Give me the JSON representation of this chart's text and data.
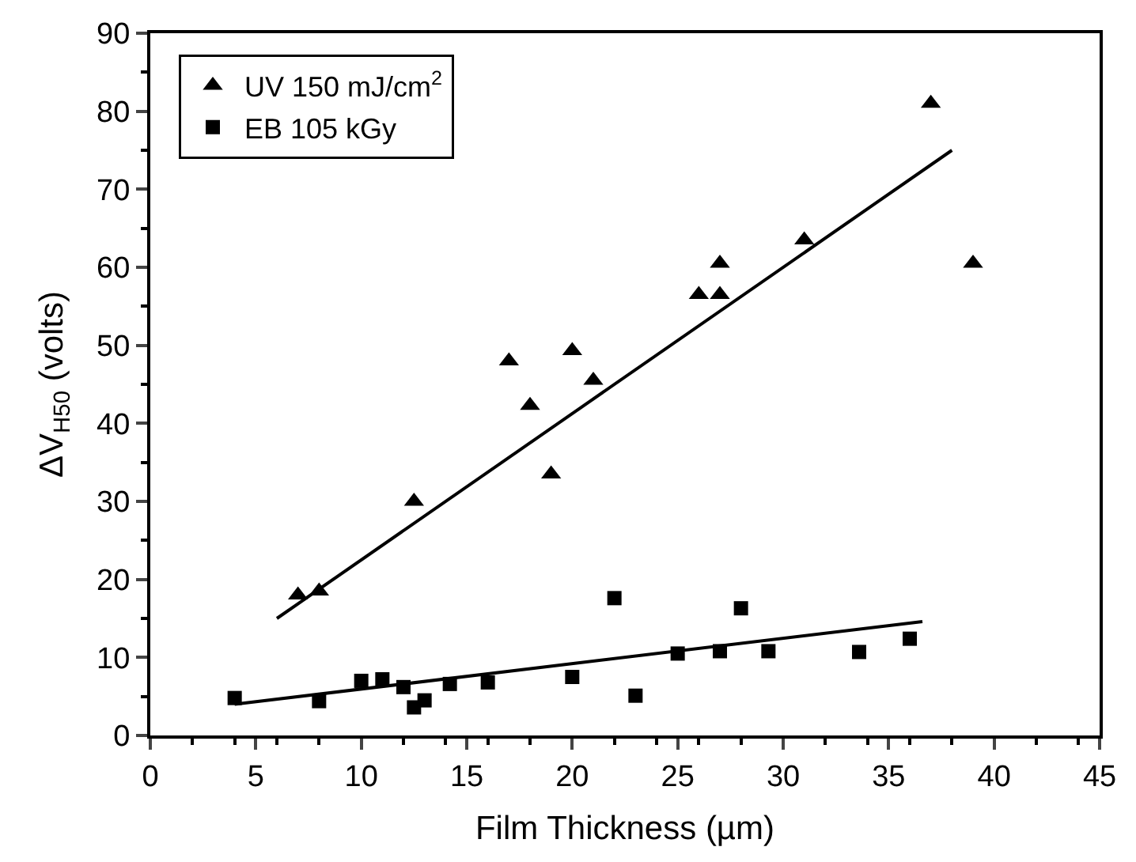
{
  "chart_data": {
    "type": "scatter",
    "xlabel": "Film Thickness (µm)",
    "ylabel": "ΔV$_{H50}$ (volts)",
    "xlim": [
      0,
      45
    ],
    "ylim": [
      0,
      90
    ],
    "xticks": [
      0,
      5,
      10,
      15,
      20,
      25,
      30,
      35,
      40,
      45
    ],
    "yticks": [
      0,
      10,
      20,
      30,
      40,
      50,
      60,
      70,
      80,
      90
    ],
    "legend": "top left",
    "series": [
      {
        "name": "UV 150 mJ/cm$^{2}$",
        "color": "#000000",
        "marker": "triangle",
        "x": [
          7,
          8,
          12.5,
          17,
          18,
          19,
          20,
          21,
          26,
          27,
          27,
          31,
          37,
          39
        ],
        "values": [
          18,
          18.5,
          30,
          48,
          42.3,
          33.5,
          49.3,
          45.5,
          56.5,
          60.5,
          56.5,
          63.5,
          81,
          60.5
        ]
      },
      {
        "name": "EB 105 kGy",
        "color": "#000000",
        "marker": "square",
        "x": [
          4,
          8,
          10,
          11,
          12,
          12.5,
          13,
          14.2,
          16,
          20,
          22,
          23,
          25,
          27,
          28,
          29.3,
          33.6,
          36
        ],
        "values": [
          4.8,
          4.4,
          7,
          7.2,
          6.2,
          3.6,
          4.5,
          6.6,
          6.8,
          7.5,
          17.6,
          5.1,
          10.5,
          10.8,
          16.3,
          10.8,
          10.7,
          12.4
        ]
      },
      {
        "type": "line",
        "color": "#000000",
        "x": [
          6,
          38
        ],
        "values": [
          15,
          75
        ]
      },
      {
        "type": "line",
        "color": "#000000",
        "x": [
          4,
          36.6
        ],
        "values": [
          4,
          14.6
        ]
      }
    ]
  }
}
